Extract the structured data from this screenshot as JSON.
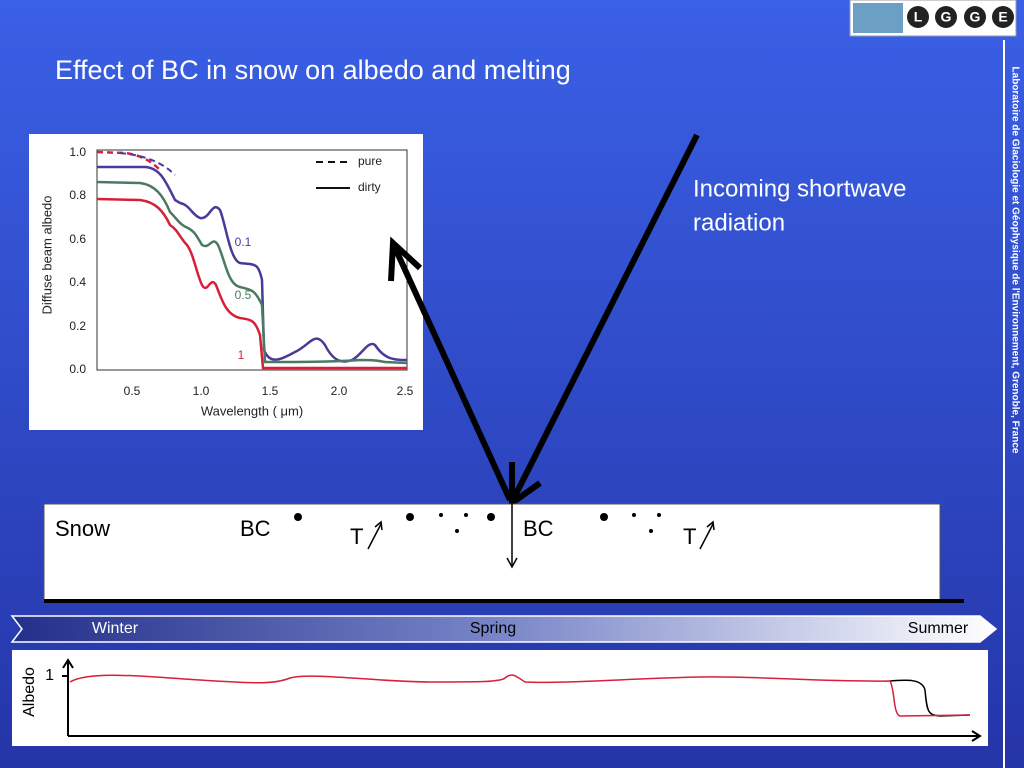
{
  "header": {
    "title": "Effect of BC in snow on albedo and melting",
    "sidebar": "Laboratoire de Glaciologie et Géophysique de l'Environnement, Grenoble, France",
    "logo": [
      "L",
      "G",
      "G",
      "E"
    ]
  },
  "figure": {
    "y_label": "Diffuse beam albedo",
    "x_label": "Wavelength ( μm)",
    "yticks": [
      "1.0",
      "0.8",
      "0.6",
      "0.4",
      "0.2",
      "0.0"
    ],
    "xticks": [
      "0.5",
      "1.0",
      "1.5",
      "2.0",
      "2.5"
    ],
    "legend": [
      "pure",
      "dirty"
    ],
    "curve_labels": [
      "0.1",
      "0.5",
      "1"
    ]
  },
  "diagram": {
    "incoming": [
      "Incoming shortwave",
      "radiation"
    ],
    "snow": "Snow",
    "bc": [
      "BC",
      "BC"
    ],
    "t": [
      "T",
      "T"
    ]
  },
  "timeline": {
    "seasons": [
      "Winter",
      "Spring",
      "Summer"
    ],
    "albedo_label": "Albedo",
    "albedo_tick": "1"
  }
}
